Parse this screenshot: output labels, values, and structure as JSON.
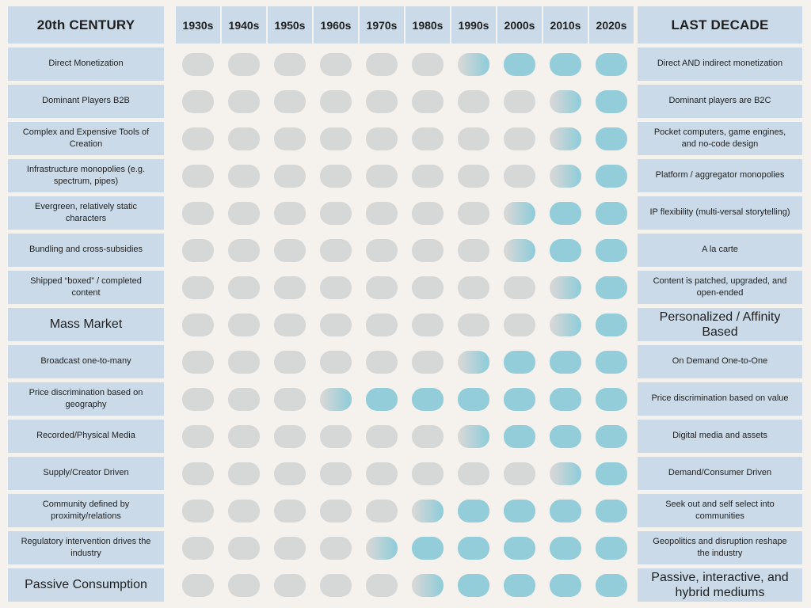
{
  "header": {
    "left": "20th CENTURY",
    "right": "LAST DECADE"
  },
  "colors": {
    "background": "#f5f1ec",
    "panel_blue": "#cadae8",
    "pill_inactive_gray": "#d6d7d7",
    "pill_active_teal": "#92cdd9",
    "text": "#1f1f1f"
  },
  "chart_data": {
    "type": "heatmap",
    "title_left_column": "20th CENTURY",
    "title_right_column": "LAST DECADE",
    "x_labels": [
      "1930s",
      "1940s",
      "1950s",
      "1960s",
      "1970s",
      "1980s",
      "1990s",
      "2000s",
      "2010s",
      "2020s"
    ],
    "value_scale": {
      "0": "inactive-gray",
      "0.5": "transition-gradient",
      "1": "active-teal"
    },
    "rows": [
      {
        "left": "Direct Monetization",
        "right": "Direct AND indirect monetization",
        "transition_decade": "1990s",
        "emphasis": false,
        "values": [
          0,
          0,
          0,
          0,
          0,
          0,
          0.5,
          1,
          1,
          1
        ]
      },
      {
        "left": "Dominant Players B2B",
        "right": "Dominant players are B2C",
        "transition_decade": "2010s",
        "emphasis": false,
        "values": [
          0,
          0,
          0,
          0,
          0,
          0,
          0,
          0,
          0.5,
          1
        ]
      },
      {
        "left": "Complex and Expensive Tools of Creation",
        "right": "Pocket computers, game engines, and no-code design",
        "transition_decade": "2010s",
        "emphasis": false,
        "values": [
          0,
          0,
          0,
          0,
          0,
          0,
          0,
          0,
          0.5,
          1
        ]
      },
      {
        "left": "Infrastructure monopolies (e.g. spectrum, pipes)",
        "right": "Platform / aggregator monopolies",
        "transition_decade": "2010s",
        "emphasis": false,
        "values": [
          0,
          0,
          0,
          0,
          0,
          0,
          0,
          0,
          0.5,
          1
        ]
      },
      {
        "left": "Evergreen, relatively static characters",
        "right": "IP flexibility (multi-versal storytelling)",
        "transition_decade": "2000s",
        "emphasis": false,
        "values": [
          0,
          0,
          0,
          0,
          0,
          0,
          0,
          0.5,
          1,
          1
        ]
      },
      {
        "left": "Bundling and cross-subsidies",
        "right": "A la carte",
        "transition_decade": "2000s",
        "emphasis": false,
        "values": [
          0,
          0,
          0,
          0,
          0,
          0,
          0,
          0.5,
          1,
          1
        ]
      },
      {
        "left": "Shipped “boxed” / completed content",
        "right": "Content is patched, upgraded, and open-ended",
        "transition_decade": "2010s",
        "emphasis": false,
        "values": [
          0,
          0,
          0,
          0,
          0,
          0,
          0,
          0,
          0.5,
          1
        ]
      },
      {
        "left": "Mass Market",
        "right": "Personalized / Affinity Based",
        "transition_decade": "2010s",
        "emphasis": true,
        "values": [
          0,
          0,
          0,
          0,
          0,
          0,
          0,
          0,
          0.5,
          1
        ]
      },
      {
        "left": "Broadcast one-to-many",
        "right": "On Demand One-to-One",
        "transition_decade": "1990s",
        "emphasis": false,
        "values": [
          0,
          0,
          0,
          0,
          0,
          0,
          0.5,
          1,
          1,
          1
        ]
      },
      {
        "left": "Price discrimination based on geography",
        "right": "Price discrimination based on value",
        "transition_decade": "1960s",
        "emphasis": false,
        "values": [
          0,
          0,
          0,
          0.5,
          1,
          1,
          1,
          1,
          1,
          1
        ]
      },
      {
        "left": "Recorded/Physical Media",
        "right": "Digital media and assets",
        "transition_decade": "1990s",
        "emphasis": false,
        "values": [
          0,
          0,
          0,
          0,
          0,
          0,
          0.5,
          1,
          1,
          1
        ]
      },
      {
        "left": "Supply/Creator Driven",
        "right": "Demand/Consumer Driven",
        "transition_decade": "2010s",
        "emphasis": false,
        "values": [
          0,
          0,
          0,
          0,
          0,
          0,
          0,
          0,
          0.5,
          1
        ]
      },
      {
        "left": "Community defined by proximity/relations",
        "right": "Seek out and self select into communities",
        "transition_decade": "1980s",
        "emphasis": false,
        "values": [
          0,
          0,
          0,
          0,
          0,
          0.5,
          1,
          1,
          1,
          1
        ]
      },
      {
        "left": "Regulatory intervention drives the industry",
        "right": "Geopolitics and disruption reshape the industry",
        "transition_decade": "1970s",
        "emphasis": false,
        "values": [
          0,
          0,
          0,
          0,
          0.5,
          1,
          1,
          1,
          1,
          1
        ]
      },
      {
        "left": "Passive Consumption",
        "right": "Passive, interactive, and hybrid mediums",
        "transition_decade": "1980s",
        "emphasis": true,
        "values": [
          0,
          0,
          0,
          0,
          0,
          0.5,
          1,
          1,
          1,
          1
        ]
      }
    ]
  }
}
